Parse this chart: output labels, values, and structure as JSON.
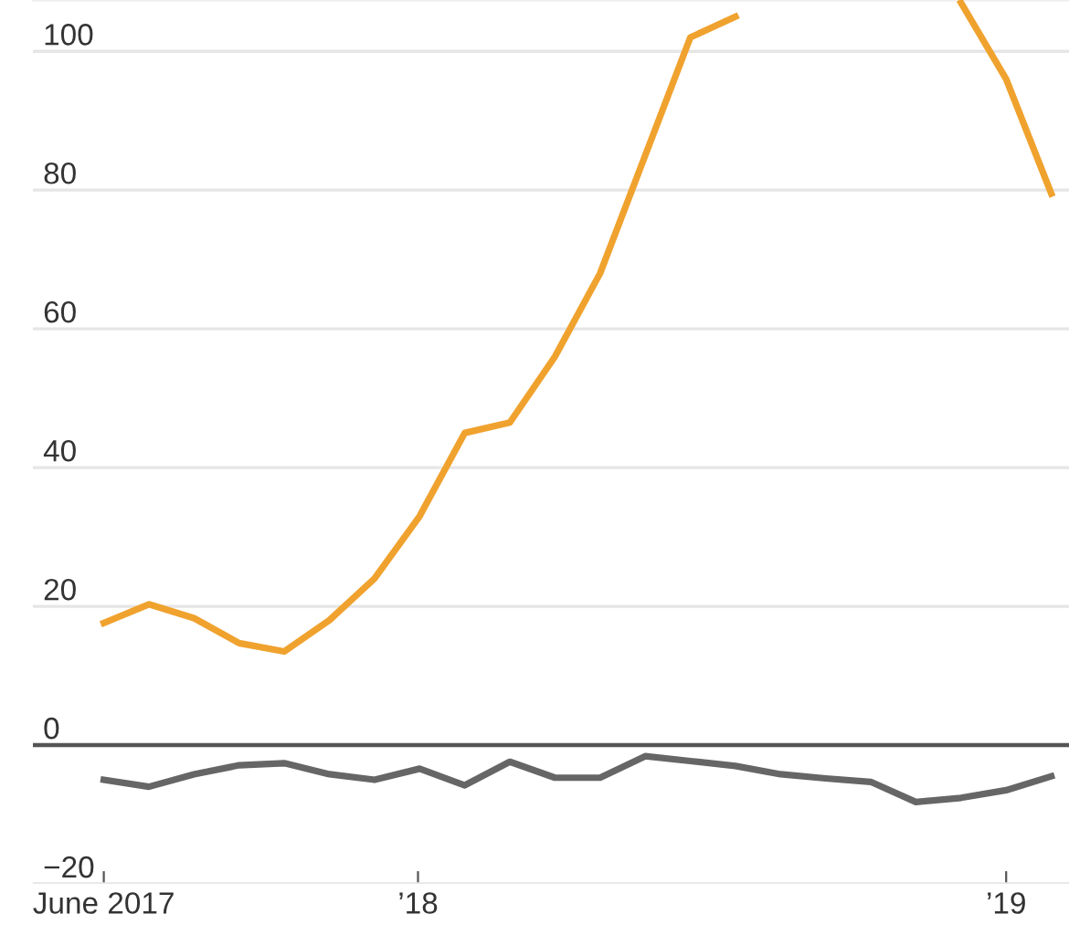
{
  "chart_data": {
    "type": "line",
    "x": [
      "2017-06-20",
      "2017-07-18",
      "2017-08-15",
      "2017-09-12",
      "2017-10-10",
      "2017-11-07",
      "2017-12-05",
      "2018-01-02",
      "2018-01-30",
      "2018-02-27",
      "2018-03-27",
      "2018-04-24",
      "2018-05-22",
      "2018-06-19",
      "2018-07-17",
      "2018-08-14",
      "2018-09-11",
      "2018-10-09",
      "2018-11-06",
      "2018-12-04",
      "2019-01-01",
      "2019-01-29"
    ],
    "series": [
      {
        "color": "#f0a22e",
        "values": [
          17.6,
          20.3,
          18.3,
          14.7,
          13.5,
          18,
          24,
          33,
          45,
          46.5,
          56,
          68,
          85,
          102,
          105,
          null,
          null,
          null,
          null,
          107,
          96,
          79.5
        ]
      },
      {
        "color": "#666666",
        "values": [
          -5,
          -6,
          -4.2,
          -2.9,
          -2.6,
          -4.2,
          -5,
          -3.4,
          -5.8,
          -2.4,
          -4.7,
          -4.7,
          -1.6,
          -2.3,
          -3.0,
          -4.2,
          -4.8,
          -5.3,
          -8.2,
          -7.6,
          -6.5,
          -4.5
        ]
      }
    ],
    "xlim": [
      "2017-05-07",
      "2019-02-09"
    ],
    "xticks": [
      {
        "value": "2017-06-20",
        "label": "June 2017"
      },
      {
        "value": "2018-01-01",
        "label": "’18"
      },
      {
        "value": "2019-01-01",
        "label": "’19"
      }
    ],
    "ylim": [
      -20,
      107.4
    ],
    "yticks": [
      {
        "value": -20,
        "label": "−20"
      },
      0,
      20,
      40,
      60,
      80,
      100
    ],
    "ref_lines": [
      {
        "axis": "y",
        "value": 0,
        "color": "#555555"
      }
    ],
    "grid": "y",
    "legend": false,
    "marker": "none",
    "line_style": "solid"
  }
}
